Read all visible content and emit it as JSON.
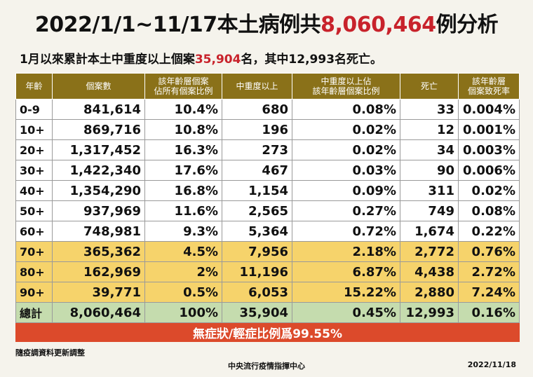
{
  "title": {
    "prefix": "2022/1/1~11/17本土病例共",
    "count": "8,060,464",
    "suffix": "例分析"
  },
  "subtitle": {
    "prefix": "1月以來累計本土中重度以上個案",
    "severe": "35,904",
    "suffix": "名，其中12,993名死亡。"
  },
  "table": {
    "headers": [
      "年齡",
      "個案數",
      "該年齡層個案\n佔所有個案比例",
      "中重度以上",
      "中重度以上佔\n該年齡層個案比例",
      "死亡",
      "該年齡層\n個案致死率"
    ],
    "rows": [
      {
        "age": "0-9",
        "cases": "841,614",
        "share": "10.4%",
        "severe": "680",
        "severe_rate": "0.08%",
        "deaths": "33",
        "fatality": "0.004%",
        "highlight": "none"
      },
      {
        "age": "10+",
        "cases": "869,716",
        "share": "10.8%",
        "severe": "196",
        "severe_rate": "0.02%",
        "deaths": "12",
        "fatality": "0.001%",
        "highlight": "none"
      },
      {
        "age": "20+",
        "cases": "1,317,452",
        "share": "16.3%",
        "severe": "273",
        "severe_rate": "0.02%",
        "deaths": "34",
        "fatality": "0.003%",
        "highlight": "none"
      },
      {
        "age": "30+",
        "cases": "1,422,340",
        "share": "17.6%",
        "severe": "467",
        "severe_rate": "0.03%",
        "deaths": "90",
        "fatality": "0.006%",
        "highlight": "none"
      },
      {
        "age": "40+",
        "cases": "1,354,290",
        "share": "16.8%",
        "severe": "1,154",
        "severe_rate": "0.09%",
        "deaths": "311",
        "fatality": "0.02%",
        "highlight": "none"
      },
      {
        "age": "50+",
        "cases": "937,969",
        "share": "11.6%",
        "severe": "2,565",
        "severe_rate": "0.27%",
        "deaths": "749",
        "fatality": "0.08%",
        "highlight": "none"
      },
      {
        "age": "60+",
        "cases": "748,981",
        "share": "9.3%",
        "severe": "5,364",
        "severe_rate": "0.72%",
        "deaths": "1,674",
        "fatality": "0.22%",
        "highlight": "none"
      },
      {
        "age": "70+",
        "cases": "365,362",
        "share": "4.5%",
        "severe": "7,956",
        "severe_rate": "2.18%",
        "deaths": "2,772",
        "fatality": "0.76%",
        "highlight": "elder"
      },
      {
        "age": "80+",
        "cases": "162,969",
        "share": "2%",
        "severe": "11,196",
        "severe_rate": "6.87%",
        "deaths": "4,438",
        "fatality": "2.72%",
        "highlight": "elder"
      },
      {
        "age": "90+",
        "cases": "39,771",
        "share": "0.5%",
        "severe": "6,053",
        "severe_rate": "15.22%",
        "deaths": "2,880",
        "fatality": "7.24%",
        "highlight": "elder"
      },
      {
        "age": "總計",
        "cases": "8,060,464",
        "share": "100%",
        "severe": "35,904",
        "severe_rate": "0.45%",
        "deaths": "12,993",
        "fatality": "0.16%",
        "highlight": "total"
      }
    ],
    "banner": "無症狀/輕症比例爲99.55%"
  },
  "footer": {
    "note": "隨疫調資料更新調整",
    "org": "中央流行疫情指揮中心",
    "date": "2022/11/18"
  },
  "colors": {
    "header_bg": "#8a7119",
    "highlight_red": "#c8222b",
    "elder_row_bg": "#f6d36b",
    "total_row_bg": "#c5dcae",
    "banner_bg": "#dc4a2b",
    "page_bg": "#f5f3ec"
  }
}
